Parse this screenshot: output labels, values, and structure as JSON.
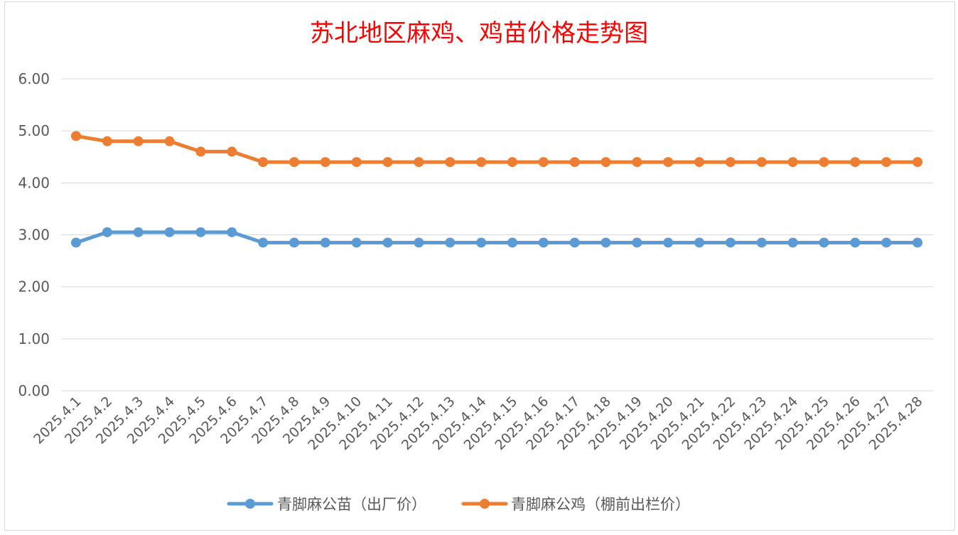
{
  "chart_data": {
    "type": "line",
    "title": "苏北地区麻鸡、鸡苗价格走势图",
    "categories": [
      "2025.4.1",
      "2025.4.2",
      "2025.4.3",
      "2025.4.4",
      "2025.4.5",
      "2025.4.6",
      "2025.4.7",
      "2025.4.8",
      "2025.4.9",
      "2025.4.10",
      "2025.4.11",
      "2025.4.12",
      "2025.4.13",
      "2025.4.14",
      "2025.4.15",
      "2025.4.16",
      "2025.4.17",
      "2025.4.18",
      "2025.4.19",
      "2025.4.20",
      "2025.4.21",
      "2025.4.22",
      "2025.4.23",
      "2025.4.24",
      "2025.4.25",
      "2025.4.26",
      "2025.4.27",
      "2025.4.28"
    ],
    "series": [
      {
        "name": "青脚麻公苗（出厂价）",
        "color": "#5b9bd5",
        "values": [
          2.85,
          3.05,
          3.05,
          3.05,
          3.05,
          3.05,
          2.85,
          2.85,
          2.85,
          2.85,
          2.85,
          2.85,
          2.85,
          2.85,
          2.85,
          2.85,
          2.85,
          2.85,
          2.85,
          2.85,
          2.85,
          2.85,
          2.85,
          2.85,
          2.85,
          2.85,
          2.85,
          2.85
        ]
      },
      {
        "name": "青脚麻公鸡（棚前出栏价）",
        "color": "#ed7d31",
        "values": [
          4.9,
          4.8,
          4.8,
          4.8,
          4.6,
          4.6,
          4.4,
          4.4,
          4.4,
          4.4,
          4.4,
          4.4,
          4.4,
          4.4,
          4.4,
          4.4,
          4.4,
          4.4,
          4.4,
          4.4,
          4.4,
          4.4,
          4.4,
          4.4,
          4.4,
          4.4,
          4.4,
          4.4
        ]
      }
    ],
    "ylim": [
      0,
      6
    ],
    "yticks": [
      "0.00",
      "1.00",
      "2.00",
      "3.00",
      "4.00",
      "5.00",
      "6.00"
    ],
    "grid": true,
    "legend": "bottom",
    "title_color": "#ff0000"
  }
}
